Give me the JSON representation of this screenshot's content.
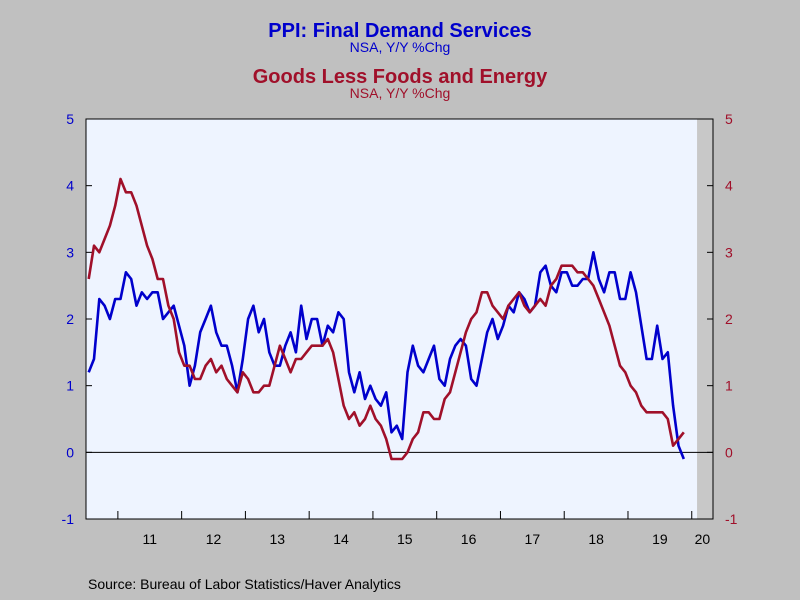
{
  "chart_data": {
    "type": "line",
    "title": "PPI: Final Demand Services",
    "subtitle": "NSA, Y/Y %Chg",
    "title2": "Goods Less Foods and Energy",
    "subtitle2": "NSA, Y/Y %Chg",
    "ylim": [
      -1,
      5
    ],
    "y_ticks": [
      "-1",
      "0",
      "1",
      "2",
      "3",
      "4",
      "5"
    ],
    "x_tick_labels": [
      "11",
      "12",
      "13",
      "14",
      "15",
      "16",
      "17",
      "18",
      "19",
      "20"
    ],
    "x_start": "2010-07",
    "x_end": "2020-04",
    "grid": false,
    "recession_shading": {
      "start": "2020-02",
      "end": "2020-04"
    },
    "series": [
      {
        "name": "PPI: Final Demand Services",
        "axis": "left",
        "color": "#0000cc",
        "start": "2010-07",
        "values": [
          1.2,
          1.4,
          2.3,
          2.2,
          2.0,
          2.3,
          2.3,
          2.7,
          2.6,
          2.2,
          2.4,
          2.3,
          2.4,
          2.4,
          2.0,
          2.1,
          2.2,
          1.9,
          1.6,
          1.0,
          1.3,
          1.8,
          2.0,
          2.2,
          1.8,
          1.6,
          1.6,
          1.3,
          0.9,
          1.4,
          2.0,
          2.2,
          1.8,
          2.0,
          1.5,
          1.3,
          1.3,
          1.6,
          1.8,
          1.5,
          2.2,
          1.7,
          2.0,
          2.0,
          1.6,
          1.9,
          1.8,
          2.1,
          2.0,
          1.2,
          0.9,
          1.2,
          0.8,
          1.0,
          0.8,
          0.7,
          0.9,
          0.3,
          0.4,
          0.2,
          1.2,
          1.6,
          1.3,
          1.2,
          1.4,
          1.6,
          1.1,
          1.0,
          1.4,
          1.6,
          1.7,
          1.6,
          1.1,
          1.0,
          1.4,
          1.8,
          2.0,
          1.7,
          1.9,
          2.2,
          2.1,
          2.4,
          2.3,
          2.1,
          2.2,
          2.7,
          2.8,
          2.5,
          2.4,
          2.7,
          2.7,
          2.5,
          2.5,
          2.6,
          2.6,
          3.0,
          2.6,
          2.4,
          2.7,
          2.7,
          2.3,
          2.3,
          2.7,
          2.4,
          1.9,
          1.4,
          1.4,
          1.9,
          1.4,
          1.5,
          0.7,
          0.1,
          -0.1
        ]
      },
      {
        "name": "Goods Less Foods and Energy",
        "axis": "right",
        "color": "#a0102a",
        "start": "2010-07",
        "values": [
          2.6,
          3.1,
          3.0,
          3.2,
          3.4,
          3.7,
          4.1,
          3.9,
          3.9,
          3.7,
          3.4,
          3.1,
          2.9,
          2.6,
          2.6,
          2.2,
          2.0,
          1.5,
          1.3,
          1.3,
          1.1,
          1.1,
          1.3,
          1.4,
          1.2,
          1.3,
          1.1,
          1.0,
          0.9,
          1.2,
          1.1,
          0.9,
          0.9,
          1.0,
          1.0,
          1.3,
          1.6,
          1.4,
          1.2,
          1.4,
          1.4,
          1.5,
          1.6,
          1.6,
          1.6,
          1.7,
          1.5,
          1.1,
          0.7,
          0.5,
          0.6,
          0.4,
          0.5,
          0.7,
          0.5,
          0.4,
          0.2,
          -0.1,
          -0.1,
          -0.1,
          0.0,
          0.2,
          0.3,
          0.6,
          0.6,
          0.5,
          0.5,
          0.8,
          0.9,
          1.2,
          1.5,
          1.8,
          2.0,
          2.1,
          2.4,
          2.4,
          2.2,
          2.1,
          2.0,
          2.2,
          2.3,
          2.4,
          2.2,
          2.1,
          2.2,
          2.3,
          2.2,
          2.5,
          2.6,
          2.8,
          2.8,
          2.8,
          2.7,
          2.7,
          2.6,
          2.5,
          2.3,
          2.1,
          1.9,
          1.6,
          1.3,
          1.2,
          1.0,
          0.9,
          0.7,
          0.6,
          0.6,
          0.6,
          0.6,
          0.5,
          0.1,
          0.2,
          0.3
        ]
      }
    ]
  },
  "source": "Source:  Bureau of Labor Statistics/Haver Analytics",
  "colors": {
    "series1": "#0000cc",
    "series2": "#a0102a",
    "plot_bg": "#eef4ff",
    "recession": "#c8c8c8",
    "page_bg": "#c0c0c0"
  }
}
